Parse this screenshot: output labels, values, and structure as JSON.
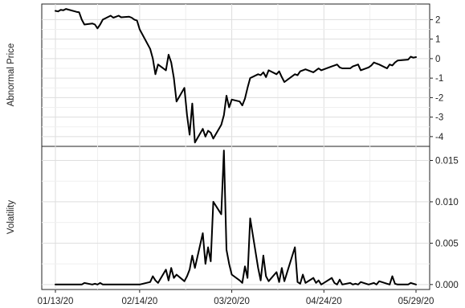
{
  "chart_data": [
    {
      "type": "line",
      "title": "",
      "ylabel": "Abnormal Price",
      "xlabel": "",
      "ylim": [
        -4.5,
        2.8
      ],
      "yticks": [
        2,
        1,
        0,
        -1,
        -2,
        -3,
        -4
      ],
      "ytick_labels": [
        "2",
        "1",
        "0",
        "-1",
        "-2",
        "-3",
        "-4"
      ],
      "grid": true,
      "series": [
        {
          "x": [
            "2020-01-13",
            "2020-01-14",
            "2020-01-15",
            "2020-01-16",
            "2020-01-17",
            "2020-01-21",
            "2020-01-22",
            "2020-01-23",
            "2020-01-24",
            "2020-01-27",
            "2020-01-28",
            "2020-01-29",
            "2020-01-30",
            "2020-01-31",
            "2020-02-03",
            "2020-02-04",
            "2020-02-05",
            "2020-02-06",
            "2020-02-07",
            "2020-02-10",
            "2020-02-11",
            "2020-02-12",
            "2020-02-13",
            "2020-02-14",
            "2020-02-18",
            "2020-02-19",
            "2020-02-20",
            "2020-02-21",
            "2020-02-24",
            "2020-02-25",
            "2020-02-26",
            "2020-02-27",
            "2020-02-28",
            "2020-03-02",
            "2020-03-03",
            "2020-03-04",
            "2020-03-05",
            "2020-03-06",
            "2020-03-09",
            "2020-03-10",
            "2020-03-11",
            "2020-03-12",
            "2020-03-13",
            "2020-03-16",
            "2020-03-17",
            "2020-03-18",
            "2020-03-19",
            "2020-03-20",
            "2020-03-23",
            "2020-03-24",
            "2020-03-25",
            "2020-03-26",
            "2020-03-27",
            "2020-03-30",
            "2020-03-31",
            "2020-04-01",
            "2020-04-02",
            "2020-04-03",
            "2020-04-06",
            "2020-04-07",
            "2020-04-08",
            "2020-04-09",
            "2020-04-13",
            "2020-04-14",
            "2020-04-15",
            "2020-04-16",
            "2020-04-17",
            "2020-04-20",
            "2020-04-21",
            "2020-04-22",
            "2020-04-23",
            "2020-04-24",
            "2020-04-27",
            "2020-04-28",
            "2020-04-29",
            "2020-04-30",
            "2020-05-01",
            "2020-05-04",
            "2020-05-05",
            "2020-05-06",
            "2020-05-07",
            "2020-05-08",
            "2020-05-11",
            "2020-05-12",
            "2020-05-13",
            "2020-05-14",
            "2020-05-15",
            "2020-05-18",
            "2020-05-19",
            "2020-05-20",
            "2020-05-21",
            "2020-05-22",
            "2020-05-26",
            "2020-05-27",
            "2020-05-28",
            "2020-05-29"
          ],
          "y": [
            2.45,
            2.42,
            2.5,
            2.48,
            2.55,
            2.4,
            2.38,
            2.0,
            1.75,
            1.8,
            1.75,
            1.55,
            1.75,
            2.0,
            2.2,
            2.1,
            2.15,
            2.2,
            2.12,
            2.15,
            2.1,
            2.0,
            1.95,
            1.5,
            0.5,
            0.0,
            -0.8,
            -0.3,
            -0.6,
            0.2,
            -0.2,
            -1.0,
            -2.2,
            -1.5,
            -2.9,
            -3.9,
            -2.3,
            -4.3,
            -3.6,
            -4.0,
            -3.7,
            -3.8,
            -4.1,
            -3.4,
            -2.9,
            -1.9,
            -2.5,
            -2.1,
            -2.2,
            -2.4,
            -2.05,
            -1.5,
            -1.0,
            -0.8,
            -0.85,
            -0.7,
            -0.95,
            -0.6,
            -0.8,
            -0.65,
            -0.95,
            -1.2,
            -0.8,
            -0.85,
            -0.65,
            -0.6,
            -0.55,
            -0.7,
            -0.6,
            -0.5,
            -0.6,
            -0.55,
            -0.4,
            -0.35,
            -0.3,
            -0.45,
            -0.5,
            -0.5,
            -0.4,
            -0.35,
            -0.3,
            -0.6,
            -0.45,
            -0.35,
            -0.2,
            -0.25,
            -0.3,
            -0.5,
            -0.3,
            -0.35,
            -0.2,
            -0.1,
            -0.05,
            0.1,
            0.05,
            0.08
          ]
        }
      ]
    },
    {
      "type": "line",
      "title": "",
      "ylabel": "Volatility",
      "xlabel": "",
      "ylim": [
        -0.0006,
        0.0167
      ],
      "yticks": [
        0.015,
        0.01,
        0.005,
        0.0
      ],
      "ytick_labels": [
        "0.015",
        "0.010",
        "0.005",
        "0.000"
      ],
      "xticks": [
        "2020-01-13",
        "2020-02-14",
        "2020-03-20",
        "2020-04-24",
        "2020-05-29"
      ],
      "xtick_labels": [
        "01/13/20",
        "02/14/20",
        "03/20/20",
        "04/24/20",
        "05/29/20"
      ],
      "grid": true,
      "series": [
        {
          "x": [
            "2020-01-13",
            "2020-01-14",
            "2020-01-15",
            "2020-01-16",
            "2020-01-17",
            "2020-01-21",
            "2020-01-22",
            "2020-01-23",
            "2020-01-24",
            "2020-01-27",
            "2020-01-28",
            "2020-01-29",
            "2020-01-30",
            "2020-01-31",
            "2020-02-03",
            "2020-02-04",
            "2020-02-05",
            "2020-02-06",
            "2020-02-07",
            "2020-02-10",
            "2020-02-11",
            "2020-02-12",
            "2020-02-13",
            "2020-02-14",
            "2020-02-18",
            "2020-02-19",
            "2020-02-20",
            "2020-02-21",
            "2020-02-24",
            "2020-02-25",
            "2020-02-26",
            "2020-02-27",
            "2020-02-28",
            "2020-03-02",
            "2020-03-03",
            "2020-03-04",
            "2020-03-05",
            "2020-03-06",
            "2020-03-09",
            "2020-03-10",
            "2020-03-11",
            "2020-03-12",
            "2020-03-13",
            "2020-03-16",
            "2020-03-17",
            "2020-03-18",
            "2020-03-19",
            "2020-03-20",
            "2020-03-23",
            "2020-03-24",
            "2020-03-25",
            "2020-03-26",
            "2020-03-27",
            "2020-03-30",
            "2020-03-31",
            "2020-04-01",
            "2020-04-02",
            "2020-04-03",
            "2020-04-06",
            "2020-04-07",
            "2020-04-08",
            "2020-04-09",
            "2020-04-13",
            "2020-04-14",
            "2020-04-15",
            "2020-04-16",
            "2020-04-17",
            "2020-04-20",
            "2020-04-21",
            "2020-04-22",
            "2020-04-23",
            "2020-04-24",
            "2020-04-27",
            "2020-04-28",
            "2020-04-29",
            "2020-04-30",
            "2020-05-01",
            "2020-05-04",
            "2020-05-05",
            "2020-05-06",
            "2020-05-07",
            "2020-05-08",
            "2020-05-11",
            "2020-05-12",
            "2020-05-13",
            "2020-05-14",
            "2020-05-15",
            "2020-05-18",
            "2020-05-19",
            "2020-05-20",
            "2020-05-21",
            "2020-05-22",
            "2020-05-26",
            "2020-05-27",
            "2020-05-28",
            "2020-05-29"
          ],
          "y": [
            0.0,
            0.0,
            0.0,
            0.0,
            0.0,
            0.0,
            0.0,
            0.0,
            0.0002,
            0.0,
            0.0001,
            0.0,
            0.0002,
            0.0,
            0.0,
            0.0,
            0.0,
            0.0,
            0.0,
            0.0,
            0.0,
            0.0,
            0.0,
            0.0,
            0.0003,
            0.001,
            0.0005,
            0.0002,
            0.0018,
            0.0005,
            0.002,
            0.0008,
            0.0012,
            0.0004,
            0.001,
            0.0018,
            0.0035,
            0.002,
            0.0062,
            0.0025,
            0.0045,
            0.0028,
            0.01,
            0.0085,
            0.0162,
            0.0042,
            0.0025,
            0.0012,
            0.0005,
            0.0002,
            0.0022,
            0.0008,
            0.008,
            0.002,
            0.0005,
            0.0035,
            0.001,
            0.0004,
            0.0015,
            0.0003,
            0.002,
            0.0004,
            0.0045,
            0.0003,
            0.0001,
            0.0012,
            0.0002,
            0.0008,
            0.0002,
            0.0005,
            0.0,
            0.0002,
            0.0008,
            0.0002,
            0.0,
            0.0006,
            0.0,
            0.0002,
            0.0,
            0.0001,
            0.0,
            0.0003,
            0.0,
            0.0001,
            0.0002,
            0.0,
            0.0004,
            0.0001,
            0.0,
            0.001,
            0.0001,
            0.0,
            0.0,
            0.0002,
            0.0001,
            0.0
          ]
        }
      ]
    }
  ]
}
